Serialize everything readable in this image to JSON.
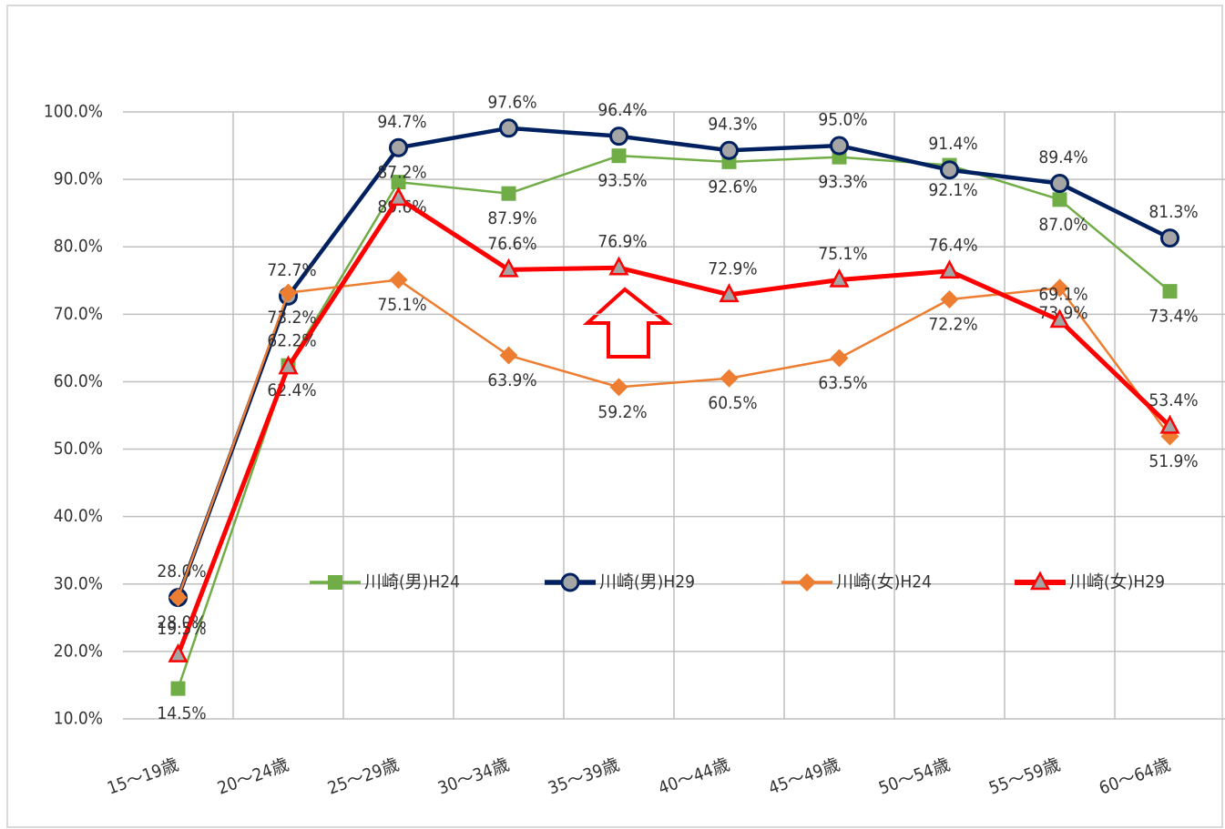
{
  "chart_data": {
    "type": "line",
    "categories": [
      "15〜19歳",
      "20〜24歳",
      "25〜29歳",
      "30〜34歳",
      "35〜39歳",
      "40〜44歳",
      "45〜49歳",
      "50〜54歳",
      "55〜59歳",
      "60〜64歳"
    ],
    "series": [
      {
        "name": "川崎(男)H24",
        "color": "#70ad47",
        "marker": "square",
        "values": [
          14.5,
          62.4,
          89.6,
          87.9,
          93.5,
          92.6,
          93.3,
          92.1,
          87.0,
          73.4
        ],
        "value_labels": [
          "14.5%",
          "62.4%",
          "89.6%",
          "87.9%",
          "93.5%",
          "92.6%",
          "93.3%",
          "92.1%",
          "87.0%",
          "73.4%"
        ]
      },
      {
        "name": "川崎(男)H29",
        "color": "#002060",
        "marker": "circle",
        "values": [
          28.0,
          72.7,
          94.7,
          97.6,
          96.4,
          94.3,
          95.0,
          91.4,
          89.4,
          81.3
        ],
        "value_labels": [
          "28.0%",
          "72.7%",
          "94.7%",
          "97.6%",
          "96.4%",
          "94.3%",
          "95.0%",
          "91.4%",
          "89.4%",
          "81.3%"
        ]
      },
      {
        "name": "川崎(女)H24",
        "color": "#ed7d31",
        "marker": "diamond",
        "values": [
          28.0,
          73.2,
          75.1,
          63.9,
          59.2,
          60.5,
          63.5,
          72.2,
          73.9,
          51.9
        ],
        "value_labels": [
          "28.0%",
          "73.2%",
          "75.1%",
          "63.9%",
          "59.2%",
          "60.5%",
          "63.5%",
          "72.2%",
          "73.9%",
          "51.9%"
        ]
      },
      {
        "name": "川崎(女)H29",
        "color": "#ff0000",
        "marker": "triangle",
        "values": [
          19.5,
          62.2,
          87.2,
          76.6,
          76.9,
          72.9,
          75.1,
          76.4,
          69.1,
          53.4
        ],
        "value_labels": [
          "19.5%",
          "62.2%",
          "87.2%",
          "76.6%",
          "76.9%",
          "72.9%",
          "75.1%",
          "76.4%",
          "69.1%",
          "53.4%"
        ]
      }
    ],
    "ylim": [
      10,
      100
    ],
    "yticks": [
      {
        "value": 10,
        "label": "10.0%"
      },
      {
        "value": 20,
        "label": "20.0%"
      },
      {
        "value": 30,
        "label": "30.0%"
      },
      {
        "value": 40,
        "label": "40.0%"
      },
      {
        "value": 50,
        "label": "50.0%"
      },
      {
        "value": 60,
        "label": "60.0%"
      },
      {
        "value": 70,
        "label": "70.0%"
      },
      {
        "value": 80,
        "label": "80.0%"
      },
      {
        "value": 90,
        "label": "90.0%"
      },
      {
        "value": 100,
        "label": "100.0%"
      }
    ],
    "grid": true,
    "legend": "inside"
  }
}
